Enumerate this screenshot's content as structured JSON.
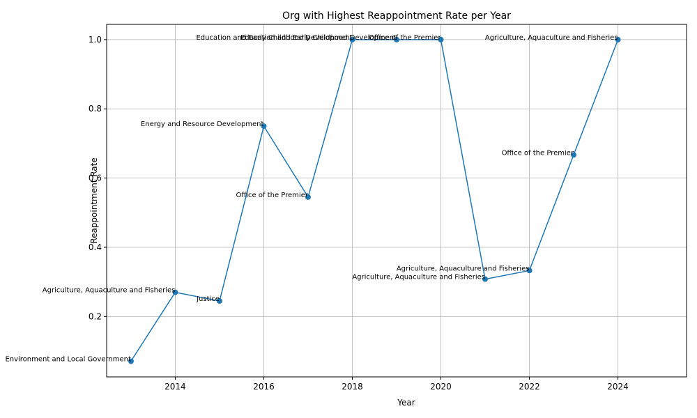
{
  "chart_data": {
    "type": "line",
    "title": "Org with Highest Reappointment Rate per Year",
    "xlabel": "Year",
    "ylabel": "Reappointment Rate",
    "xlim": [
      2012.45,
      2025.55
    ],
    "ylim": [
      0.0256,
      1.044
    ],
    "x_ticks": [
      2014,
      2016,
      2018,
      2020,
      2022,
      2024
    ],
    "y_ticks": [
      0.2,
      0.4,
      0.6,
      0.8,
      1.0
    ],
    "y_tick_labels": [
      "0.2",
      "0.4",
      "0.6",
      "0.8",
      "1.0"
    ],
    "grid": true,
    "color": "#1f77b4",
    "points": [
      {
        "x": 2013,
        "y": 0.071,
        "label": "Environment and Local Government"
      },
      {
        "x": 2014,
        "y": 0.27,
        "label": "Agriculture, Aquaculture and Fisheries"
      },
      {
        "x": 2015,
        "y": 0.245,
        "label": "Justice"
      },
      {
        "x": 2016,
        "y": 0.75,
        "label": "Energy and Resource Development"
      },
      {
        "x": 2017,
        "y": 0.545,
        "label": "Office of the Premier"
      },
      {
        "x": 2018,
        "y": 1.0,
        "label": "Education and Early Childhood Development"
      },
      {
        "x": 2019,
        "y": 1.0,
        "label": "Education and Early Childhood Development"
      },
      {
        "x": 2020,
        "y": 1.0,
        "label": "Office of the Premier"
      },
      {
        "x": 2021,
        "y": 0.308,
        "label": "Agriculture, Aquaculture and Fisheries"
      },
      {
        "x": 2022,
        "y": 0.333,
        "label": "Agriculture, Aquaculture and Fisheries"
      },
      {
        "x": 2023,
        "y": 0.667,
        "label": "Office of the Premier"
      },
      {
        "x": 2024,
        "y": 1.0,
        "label": "Agriculture, Aquaculture and Fisheries"
      }
    ]
  }
}
